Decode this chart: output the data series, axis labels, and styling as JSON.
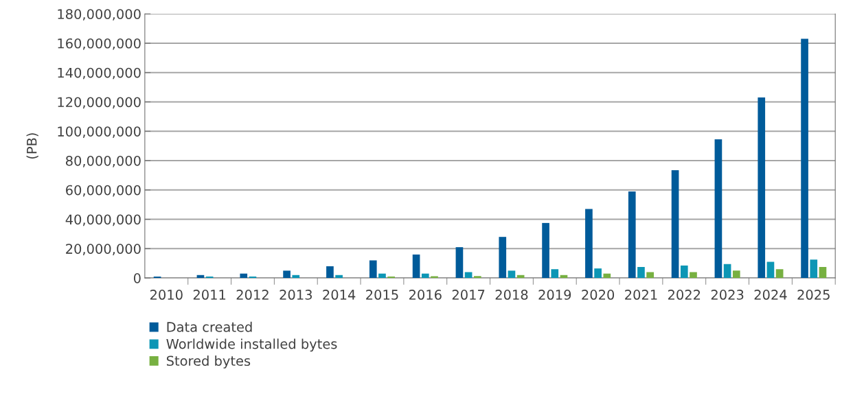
{
  "chart_data": {
    "type": "bar",
    "ylabel": "(PB)",
    "categories": [
      "2010",
      "2011",
      "2012",
      "2013",
      "2014",
      "2015",
      "2016",
      "2017",
      "2018",
      "2019",
      "2020",
      "2021",
      "2022",
      "2023",
      "2024",
      "2025"
    ],
    "series": [
      {
        "name": "Data created",
        "color": "#005b9a",
        "values": [
          1000000,
          2000000,
          3000000,
          5000000,
          8000000,
          12000000,
          16000000,
          21000000,
          28000000,
          37500000,
          47000000,
          59000000,
          73500000,
          94500000,
          123000000,
          163000000
        ]
      },
      {
        "name": "Worldwide installed bytes",
        "color": "#0c96b5",
        "values": [
          null,
          1000000,
          1000000,
          2000000,
          2000000,
          3000000,
          3000000,
          4000000,
          5000000,
          6000000,
          6500000,
          7500000,
          8500000,
          9500000,
          11000000,
          12500000
        ]
      },
      {
        "name": "Stored bytes",
        "color": "#77b041",
        "values": [
          null,
          null,
          null,
          null,
          null,
          1000000,
          1200000,
          1300000,
          2000000,
          2000000,
          3000000,
          4000000,
          4000000,
          5000000,
          6000000,
          7500000
        ]
      }
    ],
    "ylim": [
      0,
      180000000
    ],
    "yticks": [
      {
        "value": 0,
        "label": "0"
      },
      {
        "value": 20000000,
        "label": "20,000,000"
      },
      {
        "value": 40000000,
        "label": "40,000,000"
      },
      {
        "value": 60000000,
        "label": "60,000,000"
      },
      {
        "value": 80000000,
        "label": "80,000,000"
      },
      {
        "value": 100000000,
        "label": "100,000,000"
      },
      {
        "value": 120000000,
        "label": "120,000,000"
      },
      {
        "value": 140000000,
        "label": "140,000,000"
      },
      {
        "value": 160000000,
        "label": "160,000,000"
      },
      {
        "value": 180000000,
        "label": "180,000,000"
      }
    ],
    "grid": "y",
    "legend": "bottom left"
  }
}
